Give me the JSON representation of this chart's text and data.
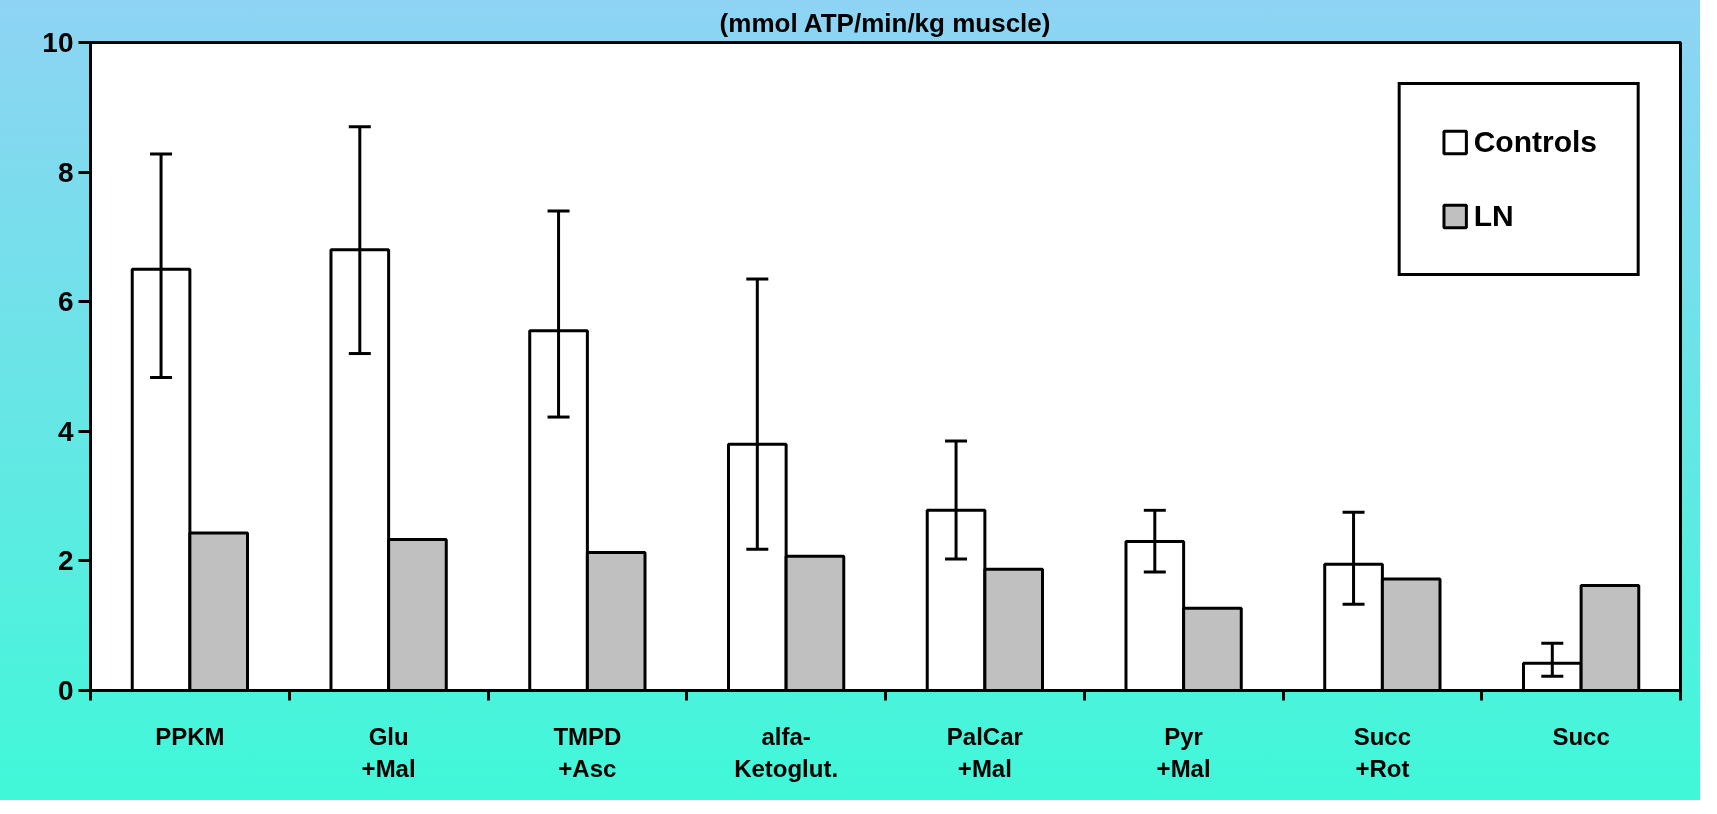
{
  "chart_data": {
    "type": "bar",
    "title": "(mmol ATP/min/kg muscle)",
    "categories": [
      "PPKM",
      "Glu\n+Mal",
      "TMPD\n+Asc",
      "alfa-\nKetoglut.",
      "PalCar\n+Mal",
      "Pyr\n+Mal",
      "Succ\n+Rot",
      "Succ"
    ],
    "series": [
      {
        "name": "Controls",
        "color": "#ffffff",
        "values": [
          6.5,
          6.8,
          5.55,
          3.8,
          2.78,
          2.3,
          1.95,
          0.42
        ],
        "errors": [
          [
            4.83,
            8.28
          ],
          [
            5.2,
            8.7
          ],
          [
            4.22,
            7.4
          ],
          [
            2.18,
            6.35
          ],
          [
            2.03,
            3.85
          ],
          [
            1.83,
            2.78
          ],
          [
            1.33,
            2.75
          ],
          [
            0.22,
            0.73
          ]
        ]
      },
      {
        "name": "LN",
        "color": "#c0c0c0",
        "values": [
          2.43,
          2.33,
          2.13,
          2.07,
          1.87,
          1.27,
          1.72,
          1.62
        ]
      }
    ],
    "ylim": [
      0,
      10
    ],
    "yticks": [
      0,
      2,
      4,
      6,
      8,
      10
    ],
    "grid": false,
    "legend": "top right"
  }
}
